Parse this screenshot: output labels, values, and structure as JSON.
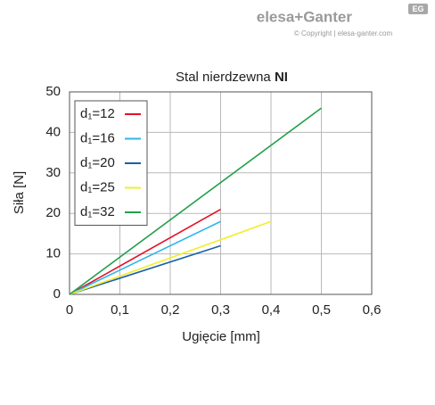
{
  "logo": {
    "brand": "elesa+Ganter",
    "copyright": "© Copyright | elesa-ganter.com",
    "badge": "EG"
  },
  "chart_data": {
    "type": "line",
    "title": "Stal nierdzewna",
    "title_bold": "NI",
    "x_label": "Ugięcie [mm]",
    "y_label": "Siła [N]",
    "xlim": [
      0,
      0.6
    ],
    "ylim": [
      0,
      50
    ],
    "xticks": [
      0,
      {
        "value": 0.1,
        "label": "0,1"
      },
      {
        "value": 0.2,
        "label": "0,2"
      },
      {
        "value": 0.3,
        "label": "0,3"
      },
      {
        "value": 0.4,
        "label": "0,4"
      },
      {
        "value": 0.5,
        "label": "0,5"
      },
      {
        "value": 0.6,
        "label": "0,6"
      }
    ],
    "yticks": [
      0,
      10,
      20,
      30,
      40,
      50
    ],
    "grid": true,
    "legend": "upper-left",
    "series": [
      {
        "name": "d₁=12",
        "color": "#e3122a",
        "x": [
          0,
          0.3
        ],
        "values": [
          0,
          21
        ]
      },
      {
        "name": "d₁=16",
        "color": "#2fb5ea",
        "x": [
          0,
          0.3
        ],
        "values": [
          0,
          18
        ]
      },
      {
        "name": "d₁=20",
        "color": "#1a5ea8",
        "x": [
          0,
          0.3
        ],
        "values": [
          0,
          12
        ]
      },
      {
        "name": "d₁=25",
        "color": "#f2ee2b",
        "x": [
          0,
          0.4
        ],
        "values": [
          0,
          18
        ]
      },
      {
        "name": "d₁=32",
        "color": "#22a04a",
        "x": [
          0,
          0.5
        ],
        "values": [
          0,
          46
        ]
      }
    ]
  }
}
